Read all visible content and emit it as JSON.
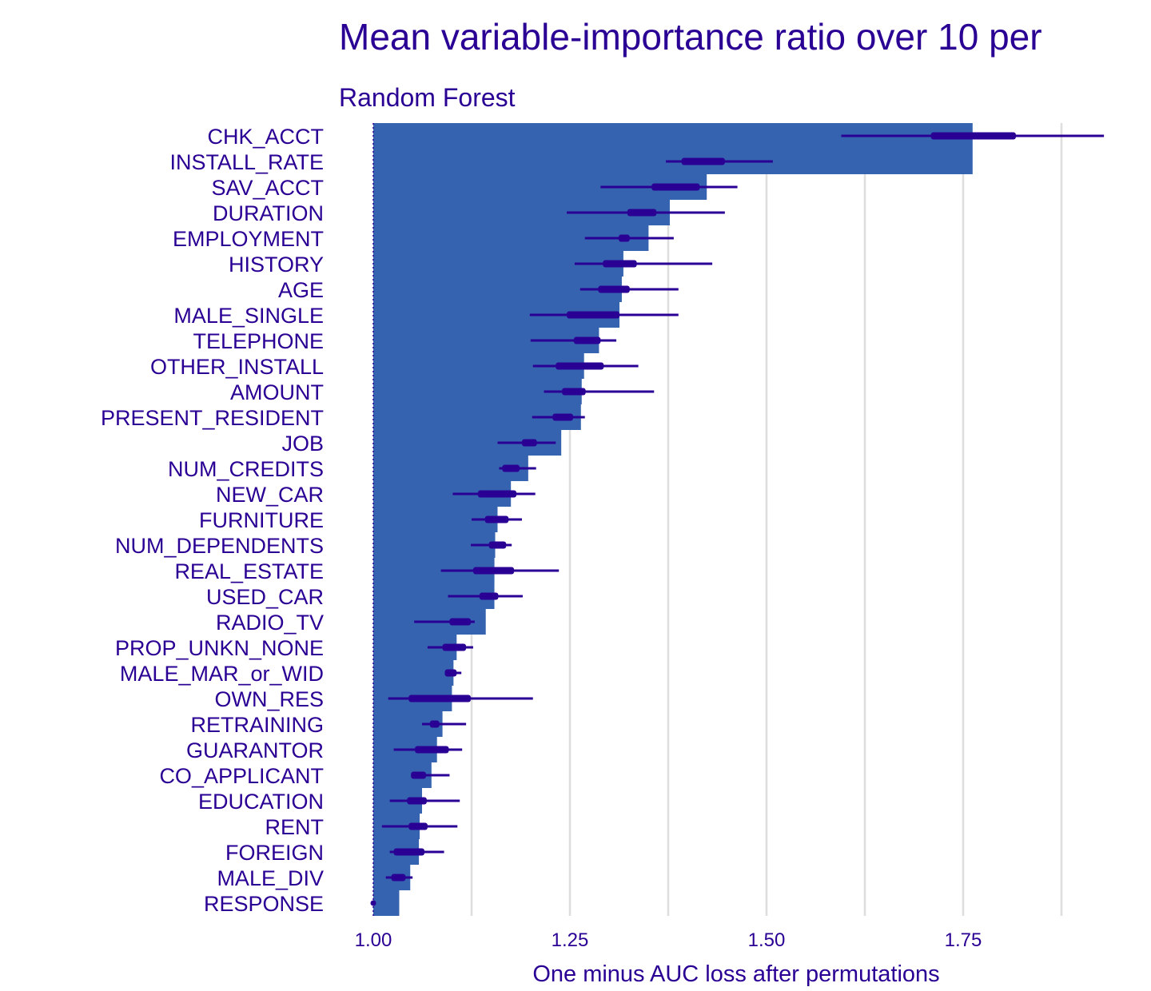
{
  "chart_data": {
    "type": "bar",
    "title": "Mean variable-importance ratio over 10 per",
    "subtitle": "Random Forest",
    "xlabel": "One minus AUC loss after permutations",
    "ylabel": "",
    "xlim": [
      1.0,
      1.94
    ],
    "x_ticks": [
      "1.00",
      "1.25",
      "1.50",
      "1.75"
    ],
    "grid": "vertical",
    "colors": {
      "bar": "#3563b0",
      "interval": "#2a0094",
      "text": "#2a0094",
      "grid": "#dedede"
    },
    "categories": [
      "CHK_ACCT",
      "INSTALL_RATE",
      "SAV_ACCT",
      "DURATION",
      "EMPLOYMENT",
      "HISTORY",
      "AGE",
      "MALE_SINGLE",
      "TELEPHONE",
      "OTHER_INSTALL",
      "AMOUNT",
      "PRESENT_RESIDENT",
      "JOB",
      "NUM_CREDITS",
      "NEW_CAR",
      "FURNITURE",
      "NUM_DEPENDENTS",
      "REAL_ESTATE",
      "USED_CAR",
      "RADIO_TV",
      "PROP_UNKN_NONE",
      "MALE_MAR_or_WID",
      "OWN_RES",
      "RETRAINING",
      "GUARANTOR",
      "CO_APPLICANT",
      "EDUCATION",
      "RENT",
      "FOREIGN",
      "MALE_DIV",
      "RESPONSE"
    ],
    "values": [
      1.762,
      1.424,
      1.377,
      1.35,
      1.318,
      1.316,
      1.313,
      1.287,
      1.268,
      1.265,
      1.264,
      1.239,
      1.197,
      1.175,
      1.158,
      1.155,
      1.154,
      1.154,
      1.143,
      1.106,
      1.102,
      1.1,
      1.088,
      1.081,
      1.074,
      1.062,
      1.059,
      1.058,
      1.047,
      1.033,
      1.0
    ],
    "interval_outer": [
      [
        1.595,
        1.929
      ],
      [
        1.372,
        1.508
      ],
      [
        1.289,
        1.463
      ],
      [
        1.246,
        1.447
      ],
      [
        1.269,
        1.382
      ],
      [
        1.256,
        1.431
      ],
      [
        1.263,
        1.388
      ],
      [
        1.199,
        1.388
      ],
      [
        1.2,
        1.309
      ],
      [
        1.203,
        1.337
      ],
      [
        1.217,
        1.357
      ],
      [
        1.202,
        1.269
      ],
      [
        1.158,
        1.232
      ],
      [
        1.16,
        1.207
      ],
      [
        1.101,
        1.206
      ],
      [
        1.125,
        1.189
      ],
      [
        1.124,
        1.176
      ],
      [
        1.086,
        1.236
      ],
      [
        1.095,
        1.19
      ],
      [
        1.052,
        1.129
      ],
      [
        1.069,
        1.127
      ],
      [
        1.091,
        1.112
      ],
      [
        1.019,
        1.203
      ],
      [
        1.062,
        1.118
      ],
      [
        1.026,
        1.113
      ],
      [
        1.048,
        1.097
      ],
      [
        1.021,
        1.11
      ],
      [
        1.011,
        1.107
      ],
      [
        1.021,
        1.09
      ],
      [
        1.016,
        1.05
      ],
      [
        1.0,
        1.0
      ]
    ],
    "interval_inner": [
      [
        1.709,
        1.817
      ],
      [
        1.392,
        1.447
      ],
      [
        1.354,
        1.415
      ],
      [
        1.323,
        1.36
      ],
      [
        1.312,
        1.326
      ],
      [
        1.292,
        1.335
      ],
      [
        1.286,
        1.326
      ],
      [
        1.246,
        1.313
      ],
      [
        1.255,
        1.289
      ],
      [
        1.232,
        1.293
      ],
      [
        1.24,
        1.27
      ],
      [
        1.228,
        1.254
      ],
      [
        1.189,
        1.208
      ],
      [
        1.164,
        1.186
      ],
      [
        1.133,
        1.182
      ],
      [
        1.142,
        1.172
      ],
      [
        1.147,
        1.169
      ],
      [
        1.127,
        1.179
      ],
      [
        1.135,
        1.159
      ],
      [
        1.097,
        1.124
      ],
      [
        1.088,
        1.118
      ],
      [
        1.091,
        1.106
      ],
      [
        1.045,
        1.124
      ],
      [
        1.072,
        1.084
      ],
      [
        1.053,
        1.096
      ],
      [
        1.048,
        1.067
      ],
      [
        1.043,
        1.068
      ],
      [
        1.045,
        1.069
      ],
      [
        1.026,
        1.065
      ],
      [
        1.023,
        1.041
      ],
      [
        1.0,
        1.0
      ]
    ]
  }
}
